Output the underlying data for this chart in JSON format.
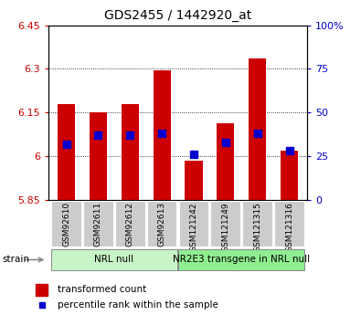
{
  "title": "GDS2455 / 1442920_at",
  "samples": [
    "GSM92610",
    "GSM92611",
    "GSM92612",
    "GSM92613",
    "GSM121242",
    "GSM121249",
    "GSM121315",
    "GSM121316"
  ],
  "transformed_counts": [
    6.18,
    6.15,
    6.18,
    6.295,
    5.985,
    6.115,
    6.335,
    6.02
  ],
  "percentile_ranks": [
    32,
    37,
    37,
    38,
    26,
    33,
    38,
    28
  ],
  "ymin": 5.85,
  "ymax": 6.45,
  "y_ticks": [
    5.85,
    6.0,
    6.15,
    6.3,
    6.45
  ],
  "y_tick_labels": [
    "5.85",
    "6",
    "6.15",
    "6.3",
    "6.45"
  ],
  "right_yticks": [
    0,
    25,
    50,
    75,
    100
  ],
  "right_ytick_labels": [
    "0",
    "25",
    "50",
    "75",
    "100%"
  ],
  "groups": [
    {
      "label": "NRL null",
      "start": 0,
      "end": 4,
      "color": "#c8f5c8"
    },
    {
      "label": "NR2E3 transgene in NRL null",
      "start": 4,
      "end": 8,
      "color": "#90ee90"
    }
  ],
  "bar_color": "#cc0000",
  "dot_color": "#0000cc",
  "bar_width": 0.55,
  "dot_size": 28,
  "left_tick_color": "#cc0000",
  "right_tick_color": "#0000cc",
  "legend_bar_label": "transformed count",
  "legend_dot_label": "percentile rank within the sample",
  "strain_label": "strain",
  "tick_label_bg": "#cccccc",
  "group_label_fontsize": 7.5,
  "x_tick_fontsize": 6.5,
  "title_fontsize": 10
}
